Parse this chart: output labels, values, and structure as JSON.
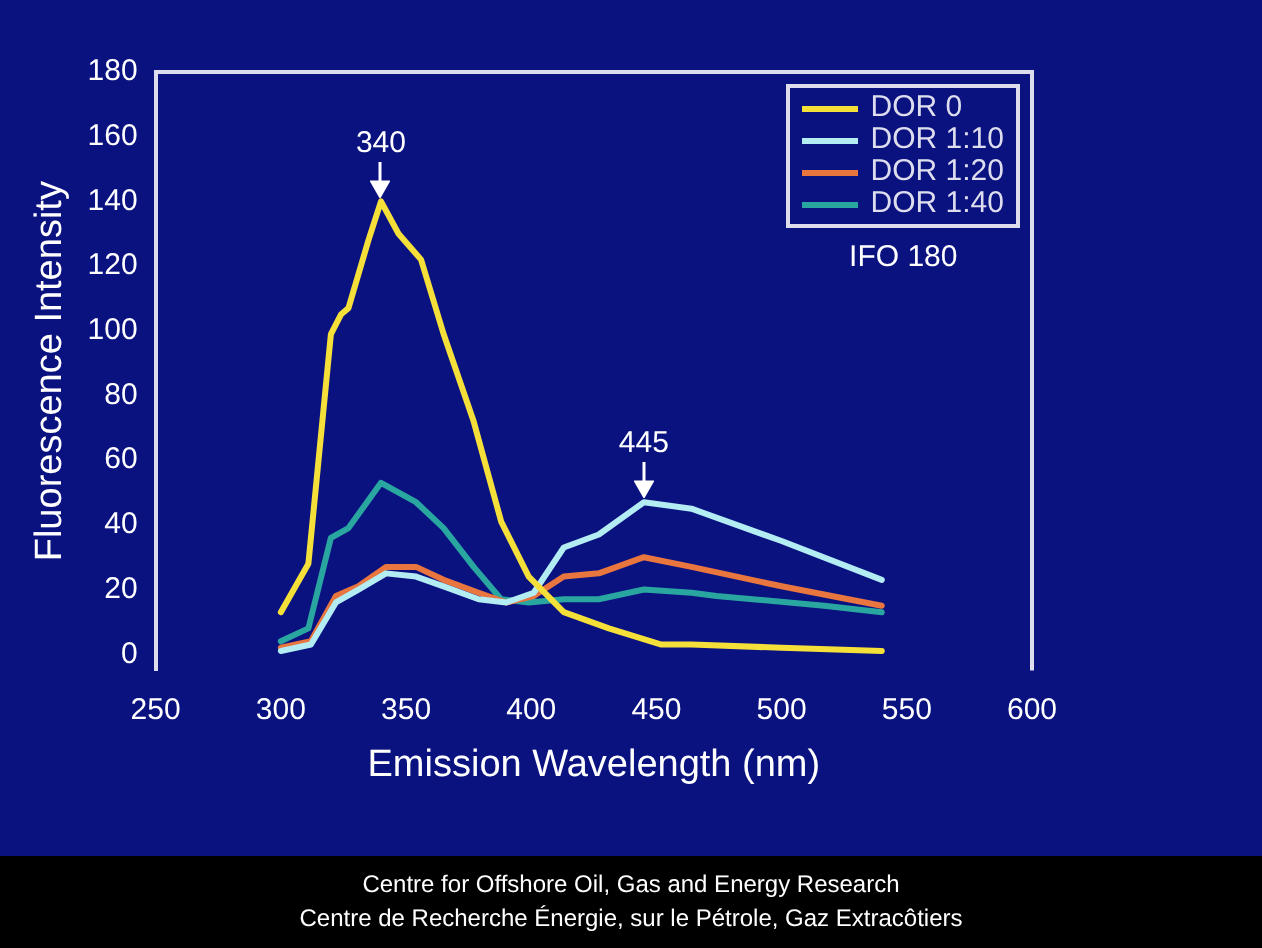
{
  "chart_data": {
    "type": "line",
    "xlabel": "Emission Wavelength (nm)",
    "ylabel": "Fluorescence Intensity",
    "xlim": [
      250,
      600
    ],
    "xticks": [
      250,
      300,
      350,
      400,
      450,
      500,
      550,
      600
    ],
    "ylim": [
      -5,
      180
    ],
    "yticks": [
      0,
      20,
      40,
      60,
      80,
      100,
      120,
      140,
      160,
      180
    ],
    "grid": false,
    "legend": "top right",
    "marker": "none",
    "line_style": "solid",
    "series": [
      {
        "name": "DOR 0",
        "color": "#f5e03a",
        "x": [
          300,
          311,
          320,
          324,
          327,
          335,
          340,
          347,
          356,
          365,
          377,
          388,
          399,
          413,
          431,
          452,
          464,
          500,
          540
        ],
        "values": [
          13,
          28,
          99,
          105,
          107,
          128,
          140,
          130,
          122,
          99,
          72,
          41,
          24,
          13,
          8,
          3,
          3,
          2,
          1
        ]
      },
      {
        "name": "DOR 1:10",
        "color": "#b4ecf4",
        "x": [
          300,
          312,
          322,
          331,
          342,
          354,
          365,
          379,
          390,
          401,
          413,
          427,
          445,
          464,
          500,
          540
        ],
        "values": [
          1,
          3,
          16,
          20,
          25,
          24,
          21,
          17,
          16,
          19,
          33,
          37,
          47,
          45,
          35,
          23
        ]
      },
      {
        "name": "DOR 1:20",
        "color": "#e8763e",
        "x": [
          300,
          312,
          322,
          331,
          342,
          354,
          365,
          379,
          390,
          401,
          413,
          427,
          445,
          464,
          500,
          540
        ],
        "values": [
          2,
          4,
          18,
          21,
          27,
          27,
          23,
          19,
          16,
          18,
          24,
          25,
          30,
          27,
          21,
          15
        ]
      },
      {
        "name": "DOR 1:40",
        "color": "#2aa6a0",
        "x": [
          300,
          311,
          320,
          327,
          340,
          354,
          365,
          377,
          388,
          399,
          413,
          427,
          445,
          464,
          474,
          517,
          540
        ],
        "values": [
          4,
          8,
          36,
          39,
          53,
          47,
          39,
          27,
          17,
          16,
          17,
          17,
          20,
          19,
          18,
          15,
          13
        ]
      }
    ],
    "annotations": [
      {
        "text": "340",
        "x": 340,
        "y": 140
      },
      {
        "text": "445",
        "x": 445,
        "y": 47
      },
      "IFO 180",
      "Centre for Offshore Oil, Gas and Energy Research",
      "Centre de Recherche Énergie, sur le Pétrole, Gaz Extracôtiers"
    ]
  }
}
